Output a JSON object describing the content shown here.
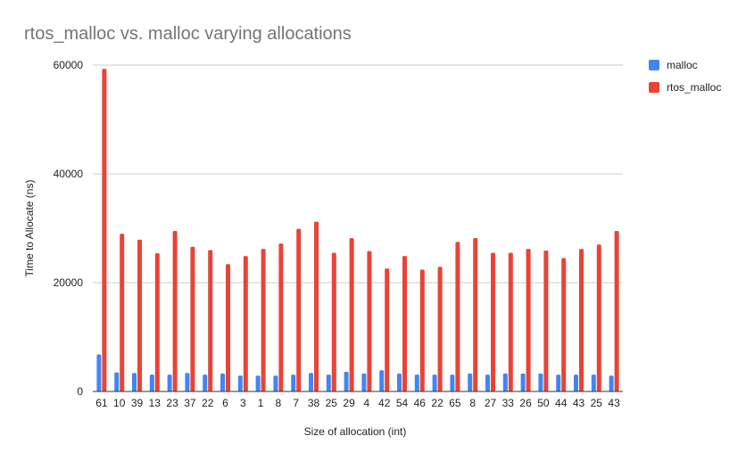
{
  "chart_data": {
    "type": "bar",
    "title": "rtos_malloc vs. malloc varying allocations",
    "xlabel": "Size of allocation (int)",
    "ylabel": "Time to Allocate (ns)",
    "ylim": [
      0,
      60000
    ],
    "yticks": [
      "0",
      "20000",
      "40000",
      "60000"
    ],
    "grid": true,
    "legend_position": "right",
    "categories": [
      "61",
      "10",
      "39",
      "13",
      "23",
      "37",
      "22",
      "6",
      "3",
      "1",
      "8",
      "7",
      "38",
      "25",
      "29",
      "4",
      "42",
      "54",
      "46",
      "22",
      "65",
      "8",
      "27",
      "33",
      "26",
      "50",
      "44",
      "43",
      "25",
      "43"
    ],
    "series": [
      {
        "name": "malloc",
        "color": "#4285f4",
        "values": [
          6800,
          3500,
          3400,
          3100,
          3100,
          3400,
          3100,
          3300,
          2900,
          2900,
          2900,
          3100,
          3400,
          3100,
          3600,
          3300,
          3900,
          3300,
          3100,
          3100,
          3100,
          3300,
          3100,
          3300,
          3300,
          3300,
          3100,
          3100,
          3100,
          2900
        ]
      },
      {
        "name": "rtos_malloc",
        "color": "#ea4335",
        "values": [
          59300,
          29000,
          27900,
          25400,
          29500,
          26600,
          26000,
          23400,
          24900,
          26200,
          27200,
          29900,
          31200,
          25500,
          28200,
          25800,
          22600,
          24900,
          22400,
          22900,
          27500,
          28200,
          25500,
          25500,
          26200,
          25900,
          24500,
          26200,
          27000,
          29500
        ]
      }
    ]
  }
}
